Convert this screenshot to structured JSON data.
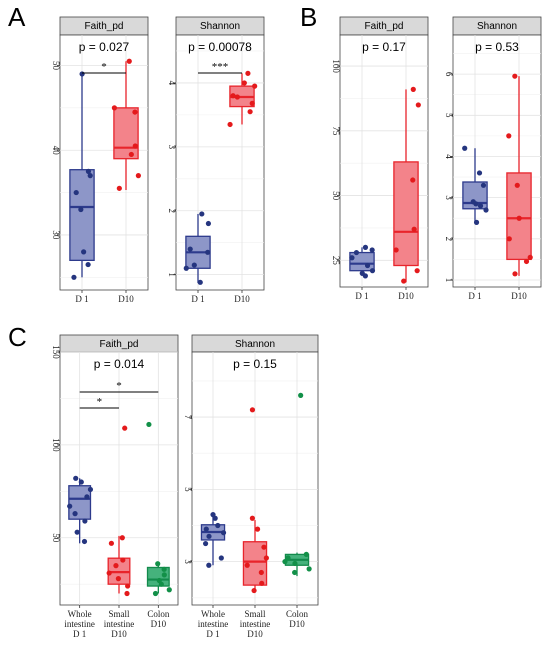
{
  "panel_labels": [
    "A",
    "B",
    "C"
  ],
  "colors": {
    "D1_fill": "#8d96c8",
    "D1_line": "#2d3a8c",
    "D1_point": "#25357f",
    "D10_fill": "#f3838a",
    "D10_line": "#e8242b",
    "D10_point": "#e41a1c",
    "Colon_fill": "#45b27c",
    "Colon_line": "#138a4c",
    "Colon_point": "#129048",
    "strip_fill": "#d9d9d9"
  },
  "chart_data": [
    {
      "panel": "A",
      "facet": "Faith_pd",
      "type": "box",
      "pvalue_label": "p = 0.027",
      "categories": [
        "D 1",
        "D10"
      ],
      "ylim": [
        23.5,
        53.6
      ],
      "yticks": [
        30,
        40,
        50
      ],
      "boxes": [
        {
          "category": "D 1",
          "min": 25,
          "q1": 27,
          "median": 33.3,
          "q3": 37.7,
          "max": 49,
          "points": [
            25,
            26.5,
            28,
            33,
            35,
            37,
            37.5,
            49
          ]
        },
        {
          "category": "D10",
          "min": 35.3,
          "q1": 39,
          "median": 40.3,
          "q3": 45,
          "max": 50.5,
          "points": [
            35.5,
            37,
            39.5,
            40.5,
            44.5,
            45,
            50.5
          ]
        }
      ],
      "significance": [
        {
          "from": 0,
          "to": 1,
          "label": "*"
        }
      ]
    },
    {
      "panel": "A",
      "facet": "Shannon",
      "type": "box",
      "pvalue_label": "p = 0.00078",
      "categories": [
        "D 1",
        "D10"
      ],
      "ylim": [
        0.76,
        4.75
      ],
      "yticks": [
        1,
        2,
        3,
        4
      ],
      "boxes": [
        {
          "category": "D 1",
          "min": 0.87,
          "q1": 1.1,
          "median": 1.35,
          "q3": 1.6,
          "max": 1.95,
          "points": [
            0.88,
            1.1,
            1.15,
            1.35,
            1.4,
            1.8,
            1.95
          ]
        },
        {
          "category": "D10",
          "min": 3.35,
          "q1": 3.63,
          "median": 3.78,
          "q3": 3.95,
          "max": 4.15,
          "points": [
            3.35,
            3.55,
            3.68,
            3.78,
            3.8,
            3.95,
            4.0,
            4.15
          ]
        }
      ],
      "significance": [
        {
          "from": 0,
          "to": 1,
          "label": "***"
        }
      ]
    },
    {
      "panel": "B",
      "facet": "Faith_pd",
      "type": "box",
      "pvalue_label": "p = 0.17",
      "categories": [
        "D 1",
        "D10"
      ],
      "ylim": [
        14.7,
        112
      ],
      "yticks": [
        25,
        50,
        75,
        100
      ],
      "boxes": [
        {
          "category": "D 1",
          "min": 19,
          "q1": 21,
          "median": 23.7,
          "q3": 28,
          "max": 30,
          "points": [
            19,
            20,
            21,
            23,
            26,
            28,
            29,
            30
          ]
        },
        {
          "category": "D10",
          "min": 16.5,
          "q1": 23,
          "median": 36,
          "q3": 63,
          "max": 91,
          "points": [
            17,
            21,
            29,
            37,
            56,
            85,
            91
          ]
        }
      ],
      "significance": []
    },
    {
      "panel": "B",
      "facet": "Shannon",
      "type": "box",
      "pvalue_label": "p = 0.53",
      "categories": [
        "D 1",
        "D10"
      ],
      "ylim": [
        0.83,
        6.95
      ],
      "yticks": [
        1,
        2,
        3,
        4,
        5,
        6
      ],
      "boxes": [
        {
          "category": "D 1",
          "min": 2.4,
          "q1": 2.73,
          "median": 2.87,
          "q3": 3.38,
          "max": 4.2,
          "points": [
            2.4,
            2.7,
            2.8,
            2.85,
            2.9,
            3.3,
            3.6,
            4.2
          ]
        },
        {
          "category": "D10",
          "min": 1.1,
          "q1": 1.5,
          "median": 2.5,
          "q3": 3.6,
          "max": 5.95,
          "points": [
            1.15,
            1.45,
            1.55,
            2.0,
            2.5,
            3.3,
            4.5,
            5.95
          ]
        }
      ],
      "significance": []
    },
    {
      "panel": "C",
      "facet": "Faith_pd",
      "type": "box",
      "pvalue_label": "p = 0.014",
      "categories": [
        "Whole intestine D 1",
        "Small intestine D10",
        "Colon D10"
      ],
      "ylim": [
        13.8,
        150
      ],
      "yticks": [
        50,
        100,
        150
      ],
      "boxes": [
        {
          "category": "Whole intestine D 1",
          "min": 47,
          "q1": 60,
          "median": 71,
          "q3": 78,
          "max": 82,
          "points": [
            48,
            53,
            59,
            63,
            67,
            72,
            76,
            80,
            82
          ]
        },
        {
          "category": "Small intestine D10",
          "min": 20,
          "q1": 25,
          "median": 31.5,
          "q3": 39,
          "max": 51,
          "points": [
            20,
            24,
            28,
            31,
            35,
            38,
            47,
            50,
            109
          ]
        },
        {
          "category": "Colon D10",
          "min": 20,
          "q1": 24,
          "median": 27.5,
          "q3": 34,
          "max": 37,
          "points": [
            20,
            22,
            25,
            27,
            30,
            33,
            36,
            111
          ]
        }
      ],
      "significance": [
        {
          "from": 0,
          "to": 1,
          "label": "*"
        },
        {
          "from": 0,
          "to": 2,
          "label": "*"
        }
      ]
    },
    {
      "panel": "C",
      "facet": "Shannon",
      "type": "box",
      "pvalue_label": "p = 0.15",
      "categories": [
        "Whole intestine D 1",
        "Small intestine D10",
        "Colon D10"
      ],
      "ylim": [
        1.8,
        8.8
      ],
      "yticks": [
        3,
        5,
        7
      ],
      "boxes": [
        {
          "category": "Whole intestine D 1",
          "min": 2.9,
          "q1": 3.6,
          "median": 3.82,
          "q3": 4.02,
          "max": 4.3,
          "points": [
            2.9,
            3.1,
            3.5,
            3.7,
            3.8,
            3.9,
            4.0,
            4.2,
            4.3
          ]
        },
        {
          "category": "Small intestine D10",
          "min": 2.2,
          "q1": 2.35,
          "median": 3.0,
          "q3": 3.55,
          "max": 4.15,
          "points": [
            2.2,
            2.4,
            2.7,
            2.9,
            3.1,
            3.4,
            3.9,
            4.2,
            7.2
          ]
        },
        {
          "category": "Colon D10",
          "min": 2.6,
          "q1": 2.9,
          "median": 3.05,
          "q3": 3.2,
          "max": 3.25,
          "points": [
            2.7,
            2.8,
            2.95,
            3.0,
            3.1,
            3.2,
            7.6
          ]
        }
      ],
      "significance": []
    }
  ]
}
